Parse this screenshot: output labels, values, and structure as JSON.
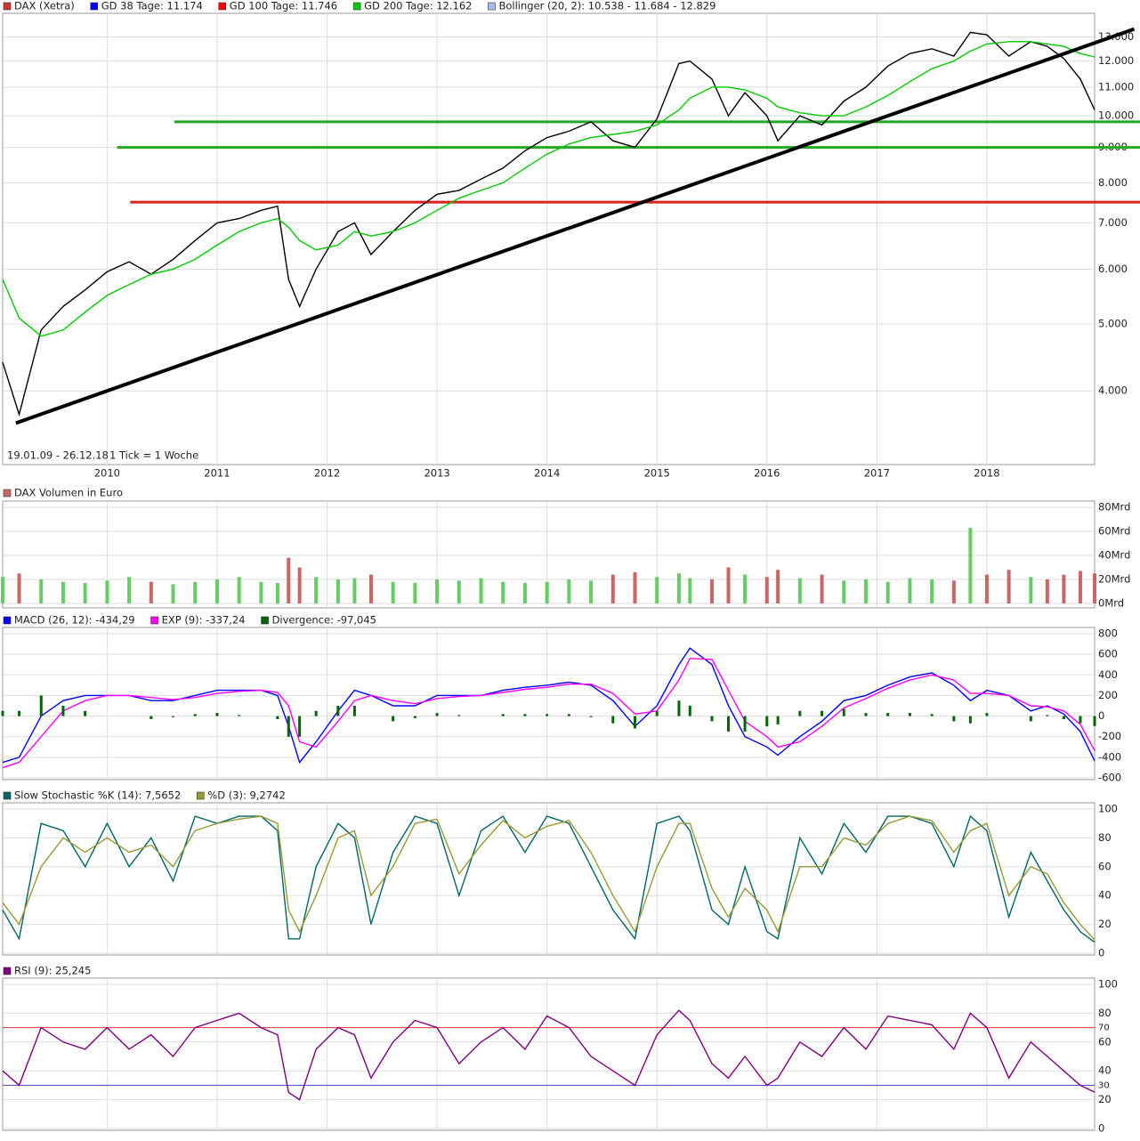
{
  "chart_data": [
    {
      "type": "line",
      "log_scale": true,
      "x": [
        2009.05,
        2009.2,
        2009.4,
        2009.6,
        2009.8,
        2010.0,
        2010.2,
        2010.4,
        2010.6,
        2010.8,
        2011.0,
        2011.2,
        2011.4,
        2011.55,
        2011.65,
        2011.75,
        2011.9,
        2012.1,
        2012.25,
        2012.4,
        2012.6,
        2012.8,
        2013.0,
        2013.2,
        2013.4,
        2013.6,
        2013.8,
        2014.0,
        2014.2,
        2014.4,
        2014.6,
        2014.8,
        2015.0,
        2015.2,
        2015.3,
        2015.5,
        2015.65,
        2015.8,
        2016.0,
        2016.1,
        2016.3,
        2016.5,
        2016.7,
        2016.9,
        2017.1,
        2017.3,
        2017.5,
        2017.7,
        2017.85,
        2018.0,
        2018.2,
        2018.4,
        2018.55,
        2018.7,
        2018.85,
        2018.98
      ],
      "xlim": [
        2009.05,
        2018.98
      ],
      "xticks": [
        2010,
        2011,
        2012,
        2013,
        2014,
        2015,
        2016,
        2017,
        2018
      ],
      "ylim": [
        3130,
        13940
      ],
      "yticks": [
        {
          "value": 4000,
          "label": "4.000"
        },
        {
          "value": 5000,
          "label": "5.000"
        },
        {
          "value": 6000,
          "label": "6.000"
        },
        {
          "value": 7000,
          "label": "7.000"
        },
        {
          "value": 8000,
          "label": "8.000"
        },
        {
          "value": 9000,
          "label": "9.000"
        },
        {
          "value": 10000,
          "label": "10.000"
        },
        {
          "value": 11000,
          "label": "11.000"
        },
        {
          "value": 12000,
          "label": "12.000"
        },
        {
          "value": 13000,
          "label": "13.000"
        }
      ],
      "grid": true,
      "date_range": "19.01.09 - 26.12.18",
      "tick_note": "1 Tick = 1 Woche",
      "series": [
        {
          "name": "DAX (Xetra)",
          "color": "#cc3333",
          "line_color": "#000000",
          "values": [
            4400,
            3700,
            4900,
            5300,
            5600,
            5950,
            6150,
            5900,
            6200,
            6600,
            7000,
            7100,
            7300,
            7400,
            5800,
            5300,
            6000,
            6800,
            7000,
            6300,
            6800,
            7300,
            7700,
            7800,
            8100,
            8400,
            8900,
            9300,
            9500,
            9800,
            9200,
            9000,
            9900,
            11900,
            12000,
            11300,
            10000,
            10800,
            10000,
            9200,
            10000,
            9700,
            10500,
            11000,
            11800,
            12300,
            12500,
            12200,
            13200,
            13100,
            12200,
            12800,
            12600,
            12100,
            11300,
            10200
          ]
        },
        {
          "name": "GD 38 Tage: 11.174",
          "color": "#0000ff"
        },
        {
          "name": "GD 100 Tage: 11.746",
          "color": "#ff0000"
        },
        {
          "name": "GD 200 Tage: 12.162",
          "color": "#00cc00",
          "values": [
            5800,
            5100,
            4800,
            4900,
            5200,
            5500,
            5700,
            5900,
            6000,
            6200,
            6500,
            6800,
            7000,
            7100,
            6900,
            6600,
            6400,
            6500,
            6800,
            6700,
            6800,
            7000,
            7300,
            7600,
            7800,
            8000,
            8400,
            8800,
            9100,
            9300,
            9400,
            9500,
            9700,
            10200,
            10600,
            11000,
            11000,
            10900,
            10600,
            10300,
            10100,
            10000,
            10000,
            10300,
            10700,
            11200,
            11700,
            12000,
            12400,
            12700,
            12800,
            12800,
            12700,
            12600,
            12300,
            12162
          ]
        },
        {
          "name": "Bollinger (20, 2): 10.538 - 11.684 - 12.829",
          "color": "#aabbee"
        }
      ],
      "hlines": [
        {
          "value": 9800,
          "color": "#22aa22",
          "x_start": 2010.61
        },
        {
          "value": 9000,
          "color": "#22aa22",
          "x_start": 2010.09
        },
        {
          "value": 7500,
          "color": "#dd2222",
          "x_start": 2010.21
        }
      ],
      "trendline": {
        "x": [
          2009.17,
          2019.34
        ],
        "y": [
          3594,
          13350
        ],
        "color": "#000000"
      }
    },
    {
      "type": "bar",
      "ylim": [
        0,
        80
      ],
      "yticks": [
        {
          "value": 0,
          "label": "0Mrd"
        },
        {
          "value": 20,
          "label": "20Mrd"
        },
        {
          "value": 40,
          "label": "40Mrd"
        },
        {
          "value": 60,
          "label": "60Mrd"
        },
        {
          "value": 80,
          "label": "80Mrd"
        }
      ],
      "grid": true,
      "up_color": "#66cc66",
      "down_color": "#cc6666",
      "series": [
        {
          "name": "DAX Volumen in Euro",
          "color": "#cc6666",
          "values": [
            22,
            25,
            20,
            18,
            17,
            19,
            22,
            18,
            16,
            18,
            20,
            22,
            18,
            17,
            38,
            30,
            22,
            20,
            21,
            24,
            18,
            17,
            20,
            19,
            21,
            18,
            17,
            18,
            20,
            19,
            24,
            26,
            22,
            25,
            21,
            20,
            30,
            24,
            22,
            28,
            21,
            24,
            19,
            20,
            18,
            21,
            20,
            19,
            63,
            24,
            28,
            22,
            20,
            24,
            27,
            25
          ]
        }
      ]
    },
    {
      "type": "line",
      "ylim": [
        -600,
        800
      ],
      "yticks": [
        -600,
        -400,
        -200,
        0,
        200,
        400,
        600,
        800
      ],
      "grid": true,
      "series": [
        {
          "name": "MACD (26, 12): -434,29",
          "color": "#0000ff",
          "values": [
            -450,
            -400,
            0,
            150,
            200,
            200,
            200,
            150,
            150,
            200,
            250,
            250,
            250,
            200,
            -100,
            -450,
            -250,
            50,
            250,
            200,
            100,
            100,
            200,
            200,
            200,
            250,
            280,
            300,
            330,
            300,
            150,
            -100,
            100,
            500,
            660,
            500,
            100,
            -200,
            -300,
            -380,
            -200,
            -50,
            150,
            200,
            300,
            380,
            420,
            300,
            150,
            250,
            200,
            50,
            100,
            20,
            -150,
            -434.29
          ]
        },
        {
          "name": "EXP (9): -337,24",
          "color": "#ff00ff",
          "values": [
            -500,
            -450,
            -200,
            50,
            150,
            200,
            200,
            180,
            160,
            180,
            220,
            240,
            250,
            230,
            100,
            -250,
            -300,
            -50,
            150,
            200,
            150,
            120,
            170,
            190,
            200,
            230,
            260,
            280,
            310,
            310,
            220,
            20,
            50,
            350,
            560,
            550,
            250,
            -50,
            -200,
            -300,
            -250,
            -100,
            80,
            170,
            270,
            350,
            400,
            350,
            220,
            220,
            200,
            100,
            90,
            50,
            -80,
            -337.24
          ]
        },
        {
          "name": "Divergence: -97,045",
          "color": "#006600",
          "style": "bar",
          "values": [
            50,
            50,
            200,
            100,
            50,
            0,
            0,
            -30,
            -10,
            20,
            30,
            10,
            0,
            -30,
            -200,
            -200,
            50,
            100,
            100,
            0,
            -50,
            -20,
            30,
            10,
            0,
            20,
            20,
            20,
            20,
            -10,
            -70,
            -120,
            50,
            150,
            100,
            -50,
            -150,
            -150,
            -100,
            -80,
            50,
            50,
            70,
            30,
            30,
            30,
            20,
            -50,
            -70,
            30,
            0,
            -50,
            10,
            -30,
            -70,
            -97.045
          ]
        }
      ]
    },
    {
      "type": "line",
      "ylim": [
        0,
        100
      ],
      "yticks": [
        0,
        20,
        40,
        60,
        80,
        100
      ],
      "grid": true,
      "series": [
        {
          "name": "Slow Stochastic %K (14): 7,5652",
          "color": "#006666",
          "values": [
            30,
            10,
            90,
            85,
            60,
            90,
            60,
            80,
            50,
            95,
            90,
            95,
            95,
            85,
            10,
            10,
            60,
            90,
            80,
            20,
            70,
            95,
            90,
            40,
            85,
            95,
            70,
            95,
            90,
            60,
            30,
            10,
            90,
            95,
            85,
            30,
            20,
            60,
            15,
            10,
            80,
            55,
            90,
            70,
            95,
            95,
            90,
            60,
            95,
            85,
            25,
            70,
            50,
            30,
            15,
            7.5652
          ]
        },
        {
          "name": "%D (3): 9,2742",
          "color": "#999933",
          "values": [
            35,
            20,
            60,
            80,
            70,
            80,
            70,
            75,
            60,
            85,
            90,
            93,
            95,
            90,
            30,
            15,
            40,
            80,
            85,
            40,
            60,
            90,
            93,
            55,
            75,
            92,
            80,
            88,
            92,
            70,
            40,
            15,
            60,
            90,
            90,
            45,
            25,
            45,
            30,
            15,
            60,
            60,
            80,
            75,
            90,
            95,
            92,
            70,
            85,
            90,
            40,
            60,
            55,
            35,
            20,
            9.2742
          ]
        }
      ]
    },
    {
      "type": "line",
      "ylim": [
        0,
        100
      ],
      "yticks": [
        0,
        20,
        40,
        60,
        80,
        100
      ],
      "grid": true,
      "levels": [
        {
          "value": 70,
          "color": "#dd3333"
        },
        {
          "value": 30,
          "color": "#4444cc"
        }
      ],
      "series": [
        {
          "name": "RSI (9): 25,245",
          "color": "#800080",
          "values": [
            40,
            30,
            70,
            60,
            55,
            70,
            55,
            65,
            50,
            70,
            75,
            80,
            70,
            65,
            25,
            20,
            55,
            70,
            65,
            35,
            60,
            75,
            70,
            45,
            60,
            70,
            55,
            78,
            70,
            50,
            40,
            30,
            65,
            82,
            75,
            45,
            35,
            50,
            30,
            35,
            60,
            50,
            70,
            55,
            78,
            75,
            72,
            55,
            80,
            70,
            35,
            60,
            50,
            40,
            30,
            25.245
          ]
        }
      ]
    }
  ]
}
